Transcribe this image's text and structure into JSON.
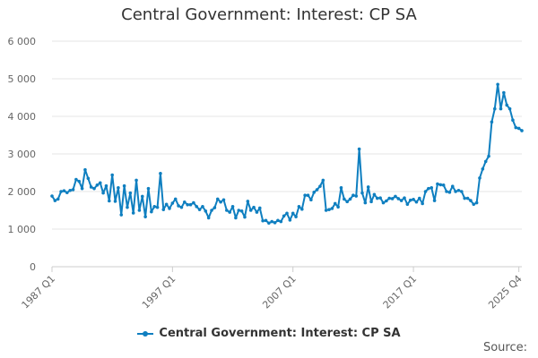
{
  "chart_data": {
    "type": "line",
    "title": "Central Government: Interest: CP SA",
    "xlabel": "",
    "ylabel": "",
    "ylim": [
      0,
      6000
    ],
    "yticks": [
      0,
      1000,
      2000,
      3000,
      4000,
      5000,
      6000
    ],
    "ytick_labels": [
      "0",
      "1 000",
      "2 000",
      "3 000",
      "4 000",
      "5 000",
      "6 000"
    ],
    "xtick_labels": [
      "1987 Q1",
      "1997 Q1",
      "2007 Q1",
      "2017 Q1",
      "2025 Q4"
    ],
    "xtick_index": [
      0,
      40,
      80,
      120,
      155
    ],
    "grid": "horizontal",
    "legend": "bottom-center",
    "series": [
      {
        "name": "Central Government: Interest: CP SA",
        "color": "#0f7fc0",
        "values": [
          1880,
          1760,
          1800,
          2000,
          2020,
          1970,
          2030,
          2050,
          2320,
          2270,
          2080,
          2580,
          2350,
          2120,
          2080,
          2170,
          2230,
          1960,
          2150,
          1750,
          2440,
          1740,
          2100,
          1380,
          2150,
          1580,
          1960,
          1430,
          2300,
          1500,
          1870,
          1330,
          2080,
          1460,
          1600,
          1580,
          2480,
          1520,
          1660,
          1550,
          1690,
          1800,
          1620,
          1580,
          1720,
          1650,
          1650,
          1700,
          1600,
          1520,
          1600,
          1480,
          1300,
          1500,
          1570,
          1800,
          1720,
          1780,
          1500,
          1450,
          1600,
          1300,
          1500,
          1480,
          1320,
          1740,
          1500,
          1580,
          1450,
          1560,
          1220,
          1230,
          1160,
          1200,
          1170,
          1230,
          1200,
          1350,
          1420,
          1240,
          1420,
          1330,
          1600,
          1530,
          1900,
          1900,
          1780,
          1980,
          2050,
          2140,
          2300,
          1500,
          1520,
          1550,
          1680,
          1590,
          2100,
          1800,
          1730,
          1800,
          1900,
          1880,
          3130,
          1960,
          1700,
          2120,
          1730,
          1920,
          1820,
          1830,
          1700,
          1750,
          1820,
          1810,
          1870,
          1810,
          1760,
          1830,
          1660,
          1770,
          1790,
          1720,
          1820,
          1680,
          2000,
          2080,
          2100,
          1760,
          2200,
          2180,
          2170,
          2000,
          1980,
          2140,
          2000,
          2030,
          2000,
          1820,
          1820,
          1760,
          1660,
          1700,
          2360,
          2600,
          2800,
          2940,
          3850,
          4200,
          4850,
          4200,
          4630,
          4300,
          4200,
          3900,
          3700,
          3680,
          3620
        ]
      }
    ],
    "legend_label": "Central Government: Interest: CP SA",
    "source_label": "Source:"
  }
}
